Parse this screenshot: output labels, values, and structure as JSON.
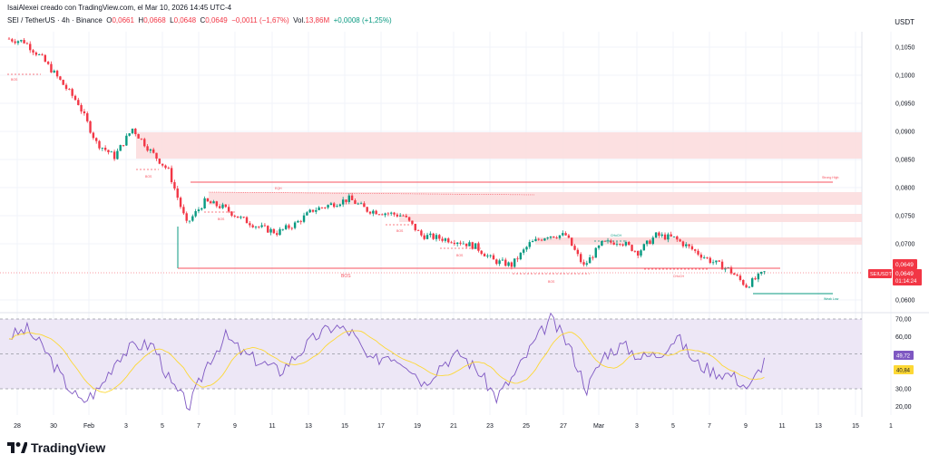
{
  "header": {
    "credit": "IsaiAlexei creado con TradingView.com, el Mar 10, 2026 14:45 UTC-4",
    "symbol": "SEI / TetherUS · 4h · Binance",
    "o_label": "O",
    "o": "0,0661",
    "h_label": "H",
    "h": "0,0668",
    "l_label": "L",
    "l": "0,0648",
    "c_label": "C",
    "c": "0,0649",
    "change": "−0,0011 (−1,67%)",
    "vol_label": "Vol.",
    "vol": "13,86M",
    "vol_change": "+0,0008 (+1,25%)",
    "currency": "USDT"
  },
  "colors": {
    "up": "#089981",
    "down": "#f23645",
    "zone": "#fbdadc",
    "rsi": "#7e57c2",
    "rsi_ma": "#fdd835",
    "rsi_band": "#ede7f6"
  },
  "price_axis": {
    "ticks": [
      "0,1050",
      "0,1000",
      "0,0950",
      "0,0900",
      "0,0850",
      "0,0800",
      "0,0750",
      "0,0700",
      "0,0600"
    ],
    "last_price": "0,0649",
    "symbol_tag": "SEIUSDT",
    "tag_price": "0,0649",
    "countdown": "01:14:24"
  },
  "rsi_axis": {
    "ticks": [
      "70,00",
      "60,00",
      "30,00",
      "20,00"
    ],
    "rsi_value": "49,72",
    "rsi_ma_value": "40,84"
  },
  "time_axis": {
    "ticks": [
      "28",
      "30",
      "Feb",
      "3",
      "5",
      "7",
      "9",
      "11",
      "13",
      "15",
      "17",
      "19",
      "21",
      "23",
      "25",
      "27",
      "Mar",
      "3",
      "5",
      "7",
      "9",
      "11",
      "13",
      "15",
      "1"
    ]
  },
  "annotations": {
    "bos": "BOS",
    "choch": "CHoCH",
    "eqh": "EQH",
    "strong_high": "Strong High",
    "weak_low": "Weak Low"
  },
  "brand": "TradingView",
  "chart_data": {
    "type": "candlestick",
    "timeframe": "4h",
    "ylim": [
      0.0585,
      0.1085
    ],
    "rsi_ylim": [
      15,
      75
    ],
    "rsi_levels": [
      70,
      50,
      30
    ],
    "daily_close_keypoints": [
      [
        "Jan 27",
        0.1065
      ],
      [
        "Jan 28",
        0.106
      ],
      [
        "Jan 29",
        0.103
      ],
      [
        "Jan 30",
        0.099
      ],
      [
        "Jan 31",
        0.095
      ],
      [
        "Feb 1",
        0.088
      ],
      [
        "Feb 2",
        0.0855
      ],
      [
        "Feb 3",
        0.0905
      ],
      [
        "Feb 4",
        0.0865
      ],
      [
        "Feb 5",
        0.083
      ],
      [
        "Feb 6",
        0.0735
      ],
      [
        "Feb 7",
        0.0775
      ],
      [
        "Feb 8",
        0.0765
      ],
      [
        "Feb 9",
        0.0745
      ],
      [
        "Feb 10",
        0.073
      ],
      [
        "Feb 11",
        0.072
      ],
      [
        "Feb 12",
        0.0735
      ],
      [
        "Feb 13",
        0.076
      ],
      [
        "Feb 14",
        0.077
      ],
      [
        "Feb 15",
        0.078
      ],
      [
        "Feb 16",
        0.076
      ],
      [
        "Feb 17",
        0.0755
      ],
      [
        "Feb 18",
        0.075
      ],
      [
        "Feb 19",
        0.0715
      ],
      [
        "Feb 20",
        0.071
      ],
      [
        "Feb 21",
        0.0705
      ],
      [
        "Feb 22",
        0.0695
      ],
      [
        "Feb 23",
        0.067
      ],
      [
        "Feb 24",
        0.0662
      ],
      [
        "Feb 25",
        0.07
      ],
      [
        "Feb 26",
        0.0715
      ],
      [
        "Feb 27",
        0.0715
      ],
      [
        "Feb 28",
        0.066
      ],
      [
        "Mar 1",
        0.07
      ],
      [
        "Mar 2",
        0.0705
      ],
      [
        "Mar 3",
        0.0685
      ],
      [
        "Mar 4",
        0.0715
      ],
      [
        "Mar 5",
        0.071
      ],
      [
        "Mar 6",
        0.069
      ],
      [
        "Mar 7",
        0.067
      ],
      [
        "Mar 8",
        0.0655
      ],
      [
        "Mar 9",
        0.0625
      ],
      [
        "Mar 10",
        0.0649
      ]
    ],
    "rsi_keypoints": [
      [
        "Jan 27",
        60
      ],
      [
        "Jan 28",
        64
      ],
      [
        "Jan 29",
        52
      ],
      [
        "Jan 30",
        35
      ],
      [
        "Jan 31",
        22
      ],
      [
        "Feb 1",
        30
      ],
      [
        "Feb 2",
        48
      ],
      [
        "Feb 3",
        55
      ],
      [
        "Feb 4",
        55
      ],
      [
        "Feb 5",
        32
      ],
      [
        "Feb 6",
        20
      ],
      [
        "Feb 7",
        45
      ],
      [
        "Feb 8",
        60
      ],
      [
        "Feb 9",
        50
      ],
      [
        "Feb 10",
        45
      ],
      [
        "Feb 11",
        40
      ],
      [
        "Feb 12",
        50
      ],
      [
        "Feb 13",
        60
      ],
      [
        "Feb 14",
        66
      ],
      [
        "Feb 15",
        62
      ],
      [
        "Feb 16",
        45
      ],
      [
        "Feb 17",
        50
      ],
      [
        "Feb 18",
        45
      ],
      [
        "Feb 19",
        33
      ],
      [
        "Feb 20",
        45
      ],
      [
        "Feb 21",
        50
      ],
      [
        "Feb 22",
        40
      ],
      [
        "Feb 23",
        25
      ],
      [
        "Feb 24",
        38
      ],
      [
        "Feb 25",
        55
      ],
      [
        "Feb 26",
        70
      ],
      [
        "Feb 27",
        55
      ],
      [
        "Feb 28",
        30
      ],
      [
        "Mar 1",
        50
      ],
      [
        "Mar 2",
        55
      ],
      [
        "Mar 3",
        48
      ],
      [
        "Mar 4",
        50
      ],
      [
        "Mar 5",
        60
      ],
      [
        "Mar 6",
        45
      ],
      [
        "Mar 7",
        40
      ],
      [
        "Mar 8",
        38
      ],
      [
        "Mar 9",
        30
      ],
      [
        "Mar 10",
        49.72
      ]
    ]
  }
}
